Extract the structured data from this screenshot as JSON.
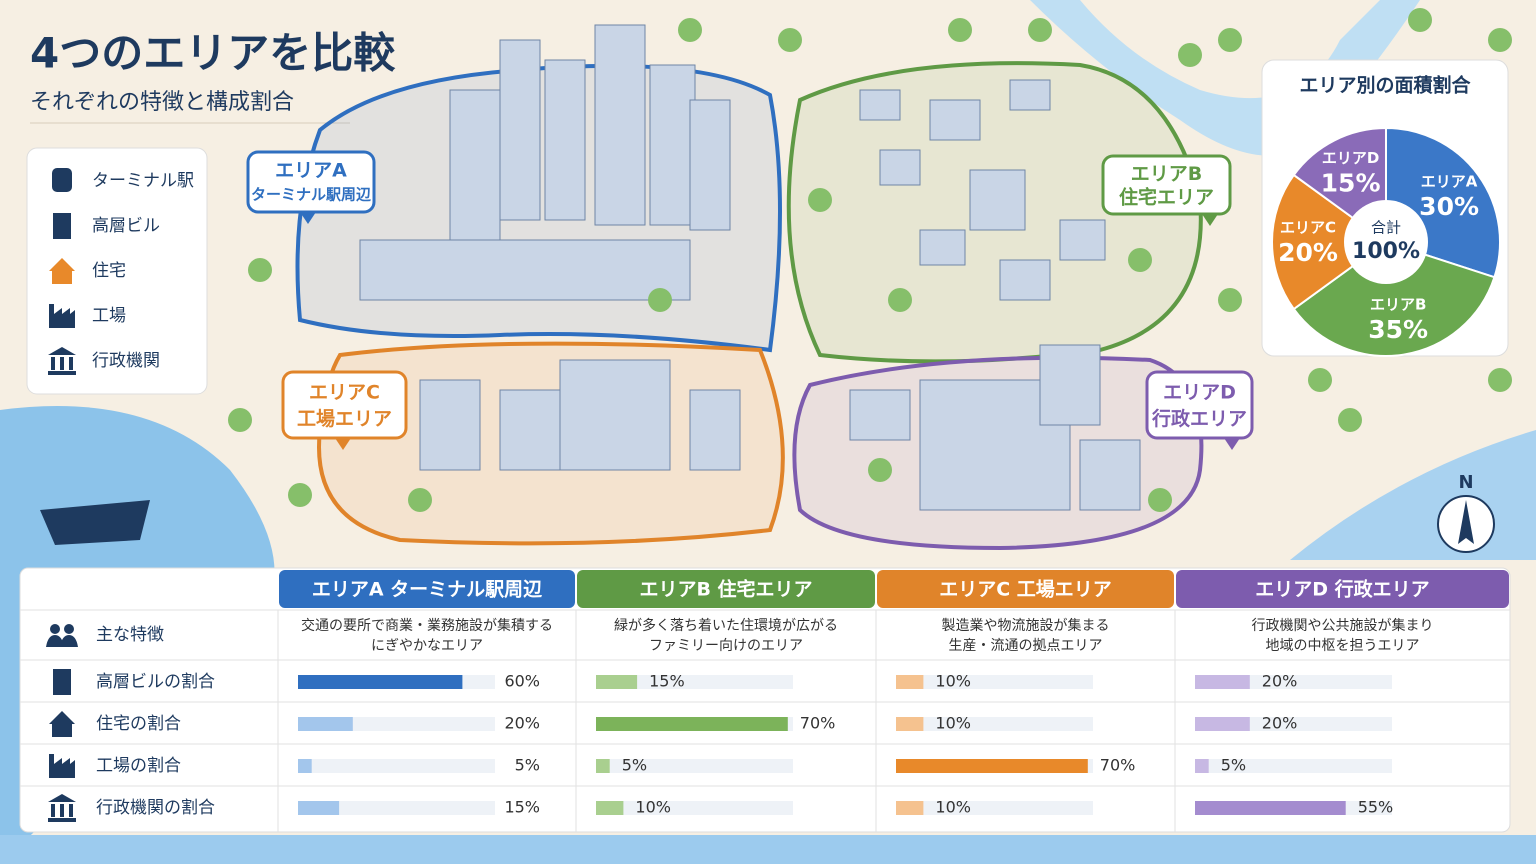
{
  "header": {
    "title": "4つのエリアを比較",
    "subtitle": "それぞれの特徴と構成割合"
  },
  "legend": {
    "items": [
      "ターミナル駅",
      "高層ビル",
      "住宅",
      "工場",
      "行政機関"
    ]
  },
  "map": {
    "areas": [
      {
        "name": "エリアA",
        "subtitle": "ターミナル駅周辺",
        "color": "#2f6fc0"
      },
      {
        "name": "エリアB",
        "subtitle": "住宅エリア",
        "color": "#5f9a45"
      },
      {
        "name": "エリアC",
        "subtitle": "工場エリア",
        "color": "#e0842a"
      },
      {
        "name": "エリアD",
        "subtitle": "行政エリア",
        "color": "#7d5cae"
      }
    ],
    "north": "N"
  },
  "chart_data": {
    "type": "pie",
    "title": "エリア別の面積割合",
    "categories": [
      "エリアA",
      "エリアB",
      "エリアC",
      "エリアD"
    ],
    "values": [
      30,
      35,
      20,
      15
    ],
    "value_labels": [
      "30%",
      "35%",
      "20%",
      "15%"
    ],
    "colors": [
      "#3b78c8",
      "#6aa84f",
      "#e8892a",
      "#8a6bb8"
    ],
    "center_label": "合計",
    "center_value_label": "100%"
  },
  "table": {
    "columns": [
      "エリアA ターミナル駅周辺",
      "エリアB 住宅エリア",
      "エリアC 工場エリア",
      "エリアD 行政エリア"
    ],
    "column_colors": [
      "#2f6fc0",
      "#5f9a45",
      "#e0842a",
      "#7d5cae"
    ],
    "row_labels": [
      "主な特徴",
      "高層ビルの割合",
      "住宅の割合",
      "工場の割合",
      "行政機関の割合"
    ],
    "features": [
      [
        "交通の要所で商業・業務施設が集積する",
        "にぎやかなエリア"
      ],
      [
        "緑が多く落ち着いた住環境が広がる",
        "ファミリー向けのエリア"
      ],
      [
        "製造業や物流施設が集まる",
        "生産・流通の拠点エリア"
      ],
      [
        "行政機関や公共施設が集まり",
        "地域の中枢を担うエリア"
      ]
    ],
    "bars": [
      {
        "values": [
          60,
          20,
          5,
          15
        ],
        "value_labels": [
          "60%",
          "20%",
          "5%",
          "15%"
        ],
        "color": "#2f6fc0",
        "light_color": "#a3c6ec"
      },
      {
        "values": [
          15,
          70,
          5,
          10
        ],
        "value_labels": [
          "15%",
          "70%",
          "5%",
          "10%"
        ],
        "color": "#7cb35a",
        "light_color": "#a9cf8f"
      },
      {
        "values": [
          10,
          10,
          70,
          10
        ],
        "value_labels": [
          "10%",
          "10%",
          "70%",
          "10%"
        ],
        "color": "#e8892a",
        "light_color": "#f5c28f"
      },
      {
        "values": [
          20,
          20,
          5,
          55
        ],
        "value_labels": [
          "20%",
          "20%",
          "5%",
          "55%"
        ],
        "color": "#a48ccf",
        "light_color": "#c7b8e3"
      }
    ]
  }
}
